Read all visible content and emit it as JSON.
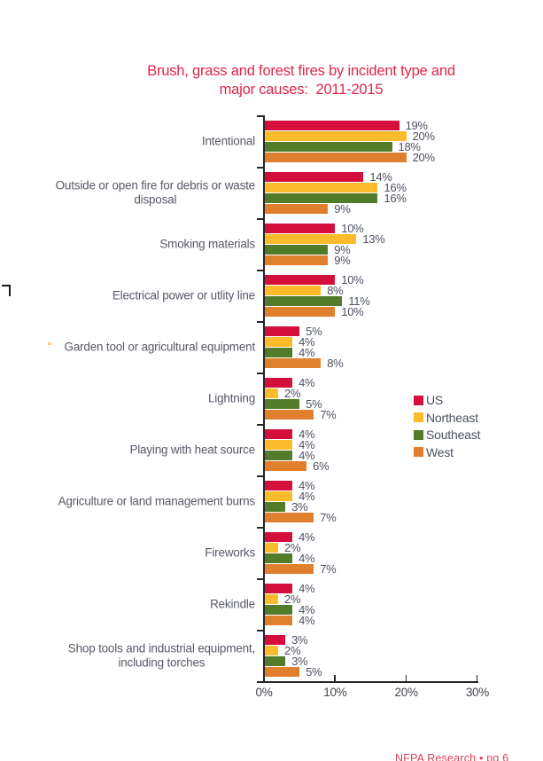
{
  "title": {
    "line1": "Brush, grass and forest fires by incident type and",
    "line2": "major causes:  2011-2015",
    "color": "#e0254a"
  },
  "footer": {
    "text": "NFPA Research • pg 6"
  },
  "chart_data": {
    "type": "bar",
    "orientation": "horizontal",
    "title": "Brush, grass and forest fires by incident type and major causes: 2011-2015",
    "unit": "percent",
    "categories": [
      "Intentional",
      "Outside or open fire for debris or waste\ndisposal",
      "Smoking materials",
      "Electrical power or utlity line",
      "Garden tool or agricultural equipment",
      "Lightning",
      "Playing with heat source",
      "Agriculture or land management burns",
      "Fireworks",
      "Rekindle",
      "Shop tools and industrial equipment,\nincluding torches"
    ],
    "series": [
      {
        "name": "US",
        "color": "#d40f3c",
        "values": [
          19,
          14,
          10,
          10,
          5,
          4,
          4,
          4,
          4,
          4,
          3
        ]
      },
      {
        "name": "Northeast",
        "color": "#fcbb2a",
        "values": [
          20,
          16,
          13,
          8,
          4,
          2,
          4,
          4,
          2,
          2,
          2
        ]
      },
      {
        "name": "Southeast",
        "color": "#527c29",
        "values": [
          18,
          16,
          9,
          11,
          4,
          5,
          4,
          3,
          4,
          4,
          3
        ]
      },
      {
        "name": "West",
        "color": "#e0802f",
        "values": [
          20,
          9,
          9,
          10,
          8,
          7,
          6,
          7,
          7,
          4,
          5
        ]
      }
    ],
    "value_labels": true,
    "x_axis": {
      "min": 0,
      "max": 30,
      "tick_values": [
        0,
        10,
        20,
        30
      ],
      "tick_labels": [
        "0%",
        "10%",
        "20%",
        "30%"
      ]
    },
    "legend_position": "middle-right",
    "grid": false
  }
}
